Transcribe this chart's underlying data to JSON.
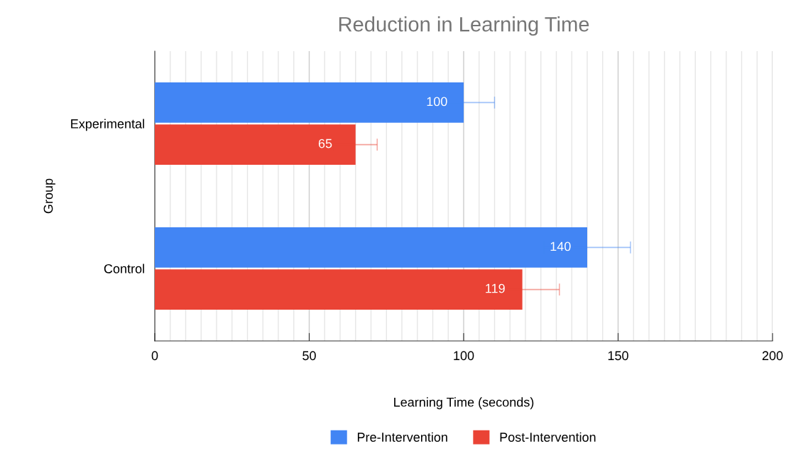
{
  "chart_data": {
    "type": "bar",
    "orientation": "horizontal",
    "title": "Reduction in Learning Time",
    "xlabel": "Learning Time (seconds)",
    "ylabel": "Group",
    "categories": [
      "Experimental",
      "Control"
    ],
    "series": [
      {
        "name": "Pre-Intervention",
        "color": "#4285f4",
        "values": [
          100,
          140
        ],
        "errors": [
          10,
          14
        ]
      },
      {
        "name": "Post-Intervention",
        "color": "#ea4335",
        "values": [
          65,
          119
        ],
        "errors": [
          7,
          12
        ]
      }
    ],
    "xlim": [
      0,
      200
    ],
    "xticks": [
      0,
      50,
      100,
      150,
      200
    ],
    "grid": "x",
    "legend": "bottom",
    "data_labels": true
  }
}
